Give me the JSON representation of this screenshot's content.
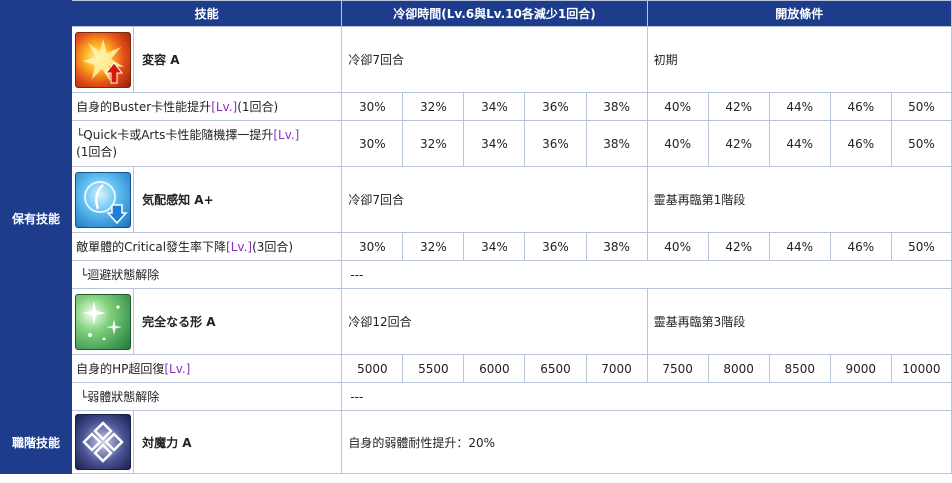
{
  "header": {
    "skill": "技能",
    "cooldown": "冷卻時間(Lv.6與Lv.10各減少1回合)",
    "unlock": "開放條件"
  },
  "sections": {
    "owned": "保有技能",
    "class": "職階技能"
  },
  "lv_tag": "[Lv.]",
  "skills": [
    {
      "name": "変容 A",
      "icon": "buster-up-icon",
      "cooldown": "冷卻7回合",
      "unlock": "初期",
      "effects": [
        {
          "pre": "自身的Buster卡性能提升",
          "post": "(1回合)",
          "values": [
            "30%",
            "32%",
            "34%",
            "36%",
            "38%",
            "40%",
            "42%",
            "44%",
            "46%",
            "50%"
          ]
        },
        {
          "pre": "└Quick卡或Arts卡性能隨機擇一提升",
          "post": "(1回合)",
          "values": [
            "30%",
            "32%",
            "34%",
            "36%",
            "38%",
            "40%",
            "42%",
            "44%",
            "46%",
            "50%"
          ]
        }
      ]
    },
    {
      "name": "気配感知 A+",
      "icon": "crit-down-icon",
      "cooldown": "冷卻7回合",
      "unlock": "靈基再臨第1階段",
      "effects": [
        {
          "pre": "敵單體的Critical發生率下降",
          "post": "(3回合)",
          "values": [
            "30%",
            "32%",
            "34%",
            "36%",
            "38%",
            "40%",
            "42%",
            "44%",
            "46%",
            "50%"
          ]
        }
      ],
      "note": {
        "label": "└迴避狀態解除",
        "value": "---"
      }
    },
    {
      "name": "完全なる形 A",
      "icon": "heal-sparkle-icon",
      "cooldown": "冷卻12回合",
      "unlock": "靈基再臨第3階段",
      "effects": [
        {
          "pre": "自身的HP超回復",
          "post": "",
          "values": [
            "5000",
            "5500",
            "6000",
            "6500",
            "7000",
            "7500",
            "8000",
            "8500",
            "9000",
            "10000"
          ]
        }
      ],
      "note": {
        "label": "└弱體狀態解除",
        "value": "---"
      }
    }
  ],
  "class_skill": {
    "name": "対魔力 A",
    "icon": "magic-resistance-icon",
    "effect": "自身的弱體耐性提升：20%"
  },
  "colors": {
    "header_bg": "#1d3d8c",
    "border": "#b9c6da",
    "lv_tag": "#8b2fc0"
  }
}
